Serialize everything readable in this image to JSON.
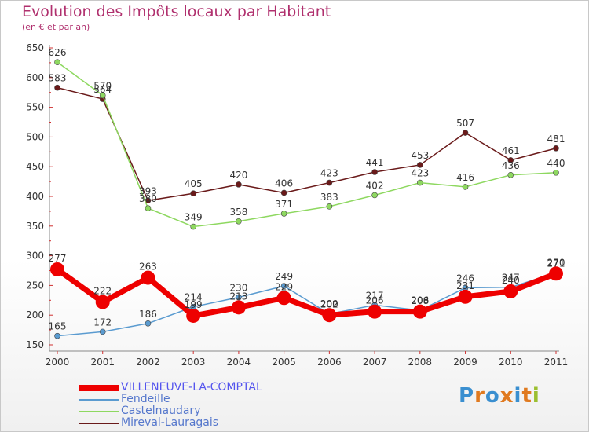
{
  "title": "Evolution des Impôts locaux par Habitant",
  "subtitle": "(en € et par an)",
  "logo": {
    "text": "Proxiti",
    "colors": [
      "#3a8fd0",
      "#e07a20",
      "#3a8fd0",
      "#e07a20",
      "#3a8fd0",
      "#e07a20",
      "#9bbf30"
    ]
  },
  "chart_data": {
    "type": "line",
    "categories": [
      "2000",
      "2001",
      "2002",
      "2003",
      "2004",
      "2005",
      "2006",
      "2007",
      "2008",
      "2009",
      "2010",
      "2011"
    ],
    "ylim": [
      150,
      650
    ],
    "yticks": [
      150,
      200,
      250,
      300,
      350,
      400,
      450,
      500,
      550,
      600,
      650
    ],
    "grid": false,
    "legend_position": "bottom-left",
    "series": [
      {
        "name": "VILLENEUVE-LA-COMPTAL",
        "color": "#ee0000",
        "width": 7,
        "marker": 9,
        "values": [
          277,
          222,
          263,
          199,
          213,
          229,
          200,
          206,
          206,
          231,
          240,
          270
        ]
      },
      {
        "name": "Fendeille",
        "color": "#5a9bd0",
        "width": 1.5,
        "marker": 3.5,
        "values": [
          165,
          172,
          186,
          214,
          230,
          249,
          202,
          217,
          208,
          246,
          247,
          271
        ]
      },
      {
        "name": "Castelnaudary",
        "color": "#8ed860",
        "width": 1.5,
        "marker": 3.5,
        "values": [
          626,
          570,
          380,
          349,
          358,
          371,
          383,
          402,
          423,
          416,
          436,
          440
        ]
      },
      {
        "name": "Mireval-Lauragais",
        "color": "#6a1a1a",
        "width": 1.5,
        "marker": 3.5,
        "values": [
          583,
          564,
          393,
          405,
          420,
          406,
          423,
          441,
          453,
          507,
          461,
          481
        ]
      }
    ]
  }
}
